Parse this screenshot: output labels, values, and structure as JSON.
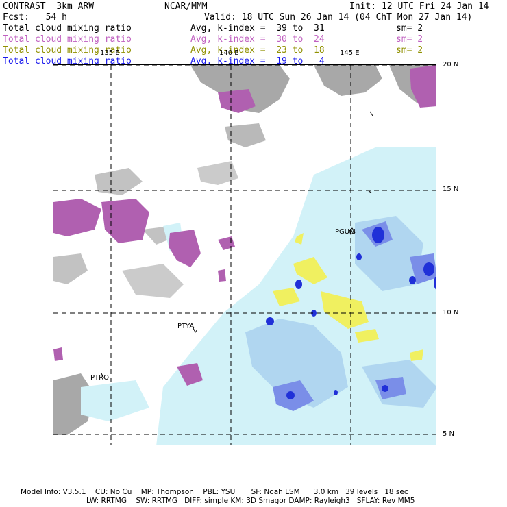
{
  "header": {
    "model": "CONTRAST  3km ARW",
    "center": "NCAR/MMM",
    "init": "Init: 12 UTC Fri 24 Jan 14",
    "fcst": "Fcst:   54 h",
    "valid": "Valid: 18 UTC Sun 26 Jan 14 (04 ChT Mon 27 Jan 14)"
  },
  "legend": [
    {
      "field": "Total cloud mixing ratio",
      "range": "Avg, k-index =  39 to  31",
      "sm": "sm= 2",
      "color": "#000000"
    },
    {
      "field": "Total cloud mixing ratio",
      "range": "Avg, k-index =  30 to  24",
      "sm": "sm= 2",
      "color": "#c060c0"
    },
    {
      "field": "Total cloud mixing ratio",
      "range": "Avg, k-index =  23 to  18",
      "sm": "sm= 2",
      "color": "#909000"
    },
    {
      "field": "Total cloud mixing ratio",
      "range": "Avg, k-index =  19 to   4",
      "sm": "",
      "color": "#1818ee"
    }
  ],
  "map": {
    "lon_labels": [
      "135 E",
      "140 E",
      "145 E"
    ],
    "lat_labels": [
      "20 N",
      "15 N",
      "10 N",
      "5 N"
    ],
    "stations": [
      "PGUM",
      "PTYA",
      "PTRO"
    ]
  },
  "footer": {
    "line1": "Model Info: V3.5.1    CU: No Cu    MP: Thompson    PBL: YSU       SF: Noah LSM      3.0 km   39 levels   18 sec",
    "line2": "LW: RRTMG    SW: RRTMG   DIFF: simple KM: 3D Smagor DAMP: Rayleigh3   SFLAY: Rev MM5"
  },
  "colors": {
    "gray": "#a8a8a8",
    "purple": "#b060b0",
    "light_blue": "#d2f2f8",
    "mid_blue": "#b0d6f0",
    "blue": "#7a8ee8",
    "dark_blue": "#2030d8",
    "yellow": "#f0f060"
  }
}
